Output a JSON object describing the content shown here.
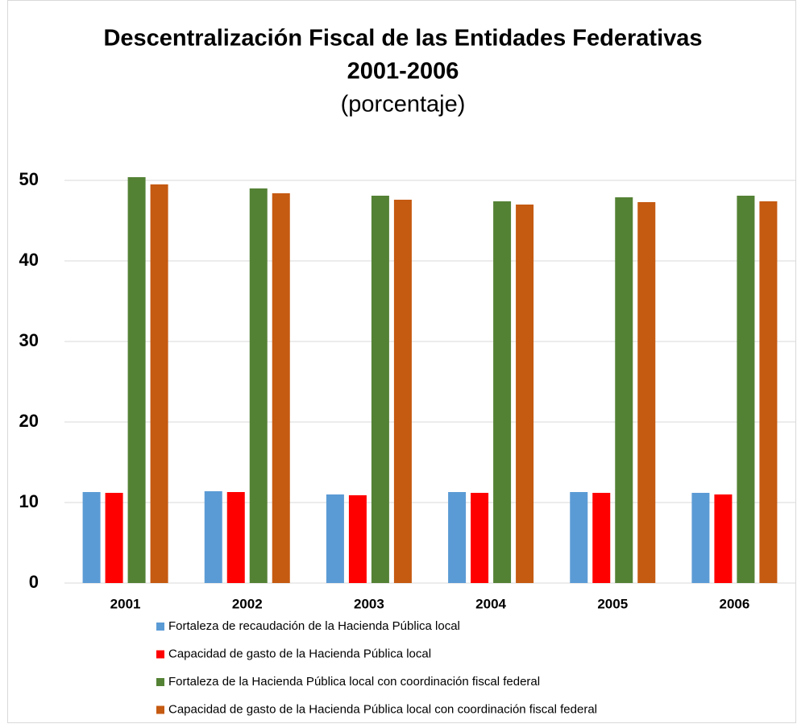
{
  "chart_data": {
    "type": "bar",
    "title": [
      "Descentralización Fiscal de las Entidades Federativas",
      "2001-2006"
    ],
    "subtitle": "(porcentaje)",
    "categories": [
      "2001",
      "2002",
      "2003",
      "2004",
      "2005",
      "2006"
    ],
    "series": [
      {
        "name": "Fortaleza de recaudación de la Hacienda Pública local",
        "color": "#5b9bd5",
        "values": [
          11.3,
          11.4,
          11.0,
          11.3,
          11.3,
          11.2
        ]
      },
      {
        "name": "Capacidad de gasto de la Hacienda Pública local",
        "color": "#ff0000",
        "values": [
          11.2,
          11.3,
          10.9,
          11.2,
          11.2,
          11.0
        ]
      },
      {
        "name": "Fortaleza de la Hacienda Pública local con coordinación fiscal federal",
        "color": "#548235",
        "values": [
          50.4,
          49.0,
          48.1,
          47.4,
          47.9,
          48.1
        ]
      },
      {
        "name": "Capacidad de gasto de la Hacienda Pública local con coordinación fiscal federal",
        "color": "#c55a11",
        "values": [
          49.5,
          48.4,
          47.6,
          47.0,
          47.3,
          47.4
        ]
      }
    ],
    "ylim": [
      0,
      55
    ],
    "yticks": [
      0,
      10,
      20,
      30,
      40,
      50
    ],
    "grid": true,
    "legend": "bottom"
  }
}
